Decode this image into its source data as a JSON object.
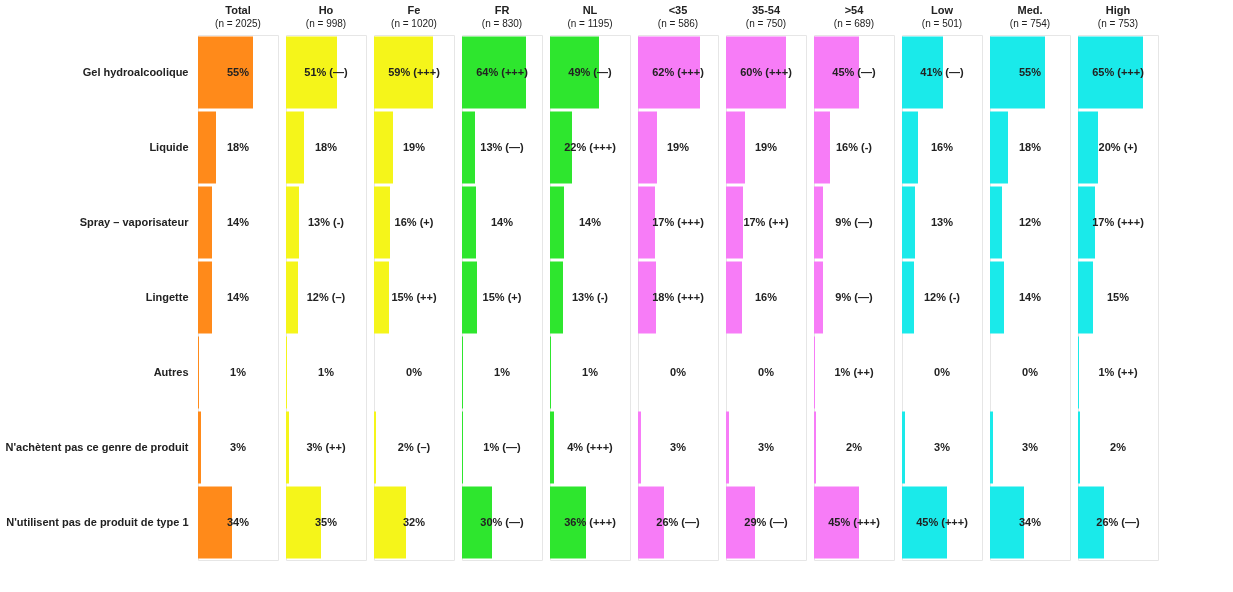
{
  "chart_data": [
    {
      "type": "bar",
      "orientation": "horizontal",
      "title": "Total",
      "subtitle": "(n = 2025)",
      "categories": [
        "Gel hydroalcoolique",
        "Liquide",
        "Spray – vaporisateur",
        "Lingette",
        "Autres",
        "N'achètent pas ce genre de produit",
        "N'utilisent pas de produit de type 1"
      ],
      "xlim": [
        0,
        80
      ],
      "tick_labels": "y",
      "grid": false,
      "legend": false,
      "series": [
        {
          "color": "#ff8a1a",
          "values": [
            55,
            18,
            14,
            14,
            1,
            3,
            34
          ],
          "value_labels": [
            "55%",
            "18%",
            "14%",
            "14%",
            "1%",
            "3%",
            "34%"
          ]
        }
      ]
    },
    {
      "type": "bar",
      "orientation": "horizontal",
      "title": "Ho",
      "subtitle": "(n = 998)",
      "xlim": [
        0,
        80
      ],
      "tick_labels": false,
      "grid": false,
      "legend": false,
      "series": [
        {
          "color": "#f5f51a",
          "values": [
            51,
            18,
            13,
            12,
            1,
            3,
            35
          ],
          "value_labels": [
            "51% (—)",
            "18%",
            "13% (-)",
            "12% (–)",
            "1%",
            "3% (++)",
            "35%"
          ]
        }
      ]
    },
    {
      "type": "bar",
      "orientation": "horizontal",
      "title": "Fe",
      "subtitle": "(n = 1020)",
      "xlim": [
        0,
        80
      ],
      "tick_labels": false,
      "grid": false,
      "legend": false,
      "series": [
        {
          "color": "#f5f51a",
          "values": [
            59,
            19,
            16,
            15,
            0,
            2,
            32
          ],
          "value_labels": [
            "59% (+++)",
            "19%",
            "16% (+)",
            "15% (++)",
            "0%",
            "2% (–)",
            "32%"
          ]
        }
      ]
    },
    {
      "type": "bar",
      "orientation": "horizontal",
      "title": "FR",
      "subtitle": "(n = 830)",
      "xlim": [
        0,
        80
      ],
      "tick_labels": false,
      "grid": false,
      "legend": false,
      "series": [
        {
          "color": "#2ee62e",
          "values": [
            64,
            13,
            14,
            15,
            1,
            1,
            30
          ],
          "value_labels": [
            "64% (+++)",
            "13% (—)",
            "14%",
            "15% (+)",
            "1%",
            "1% (—)",
            "30% (—)"
          ]
        }
      ]
    },
    {
      "type": "bar",
      "orientation": "horizontal",
      "title": "NL",
      "subtitle": "(n = 1195)",
      "xlim": [
        0,
        80
      ],
      "tick_labels": false,
      "grid": false,
      "legend": false,
      "series": [
        {
          "color": "#2ee62e",
          "values": [
            49,
            22,
            14,
            13,
            1,
            4,
            36
          ],
          "value_labels": [
            "49% (—)",
            "22% (+++)",
            "14%",
            "13% (-)",
            "1%",
            "4% (+++)",
            "36% (+++)"
          ]
        }
      ]
    },
    {
      "type": "bar",
      "orientation": "horizontal",
      "title": "<35",
      "subtitle": "(n = 586)",
      "xlim": [
        0,
        80
      ],
      "tick_labels": false,
      "grid": false,
      "legend": false,
      "series": [
        {
          "color": "#f77cf7",
          "values": [
            62,
            19,
            17,
            18,
            0,
            3,
            26
          ],
          "value_labels": [
            "62% (+++)",
            "19%",
            "17% (+++)",
            "18% (+++)",
            "0%",
            "3%",
            "26% (—)"
          ]
        }
      ]
    },
    {
      "type": "bar",
      "orientation": "horizontal",
      "title": "35-54",
      "subtitle": "(n = 750)",
      "xlim": [
        0,
        80
      ],
      "tick_labels": false,
      "grid": false,
      "legend": false,
      "series": [
        {
          "color": "#f77cf7",
          "values": [
            60,
            19,
            17,
            16,
            0,
            3,
            29
          ],
          "value_labels": [
            "60% (+++)",
            "19%",
            "17% (++)",
            "16%",
            "0%",
            "3%",
            "29% (—)"
          ]
        }
      ]
    },
    {
      "type": "bar",
      "orientation": "horizontal",
      "title": ">54",
      "subtitle": "(n = 689)",
      "xlim": [
        0,
        80
      ],
      "tick_labels": false,
      "grid": false,
      "legend": false,
      "series": [
        {
          "color": "#f77cf7",
          "values": [
            45,
            16,
            9,
            9,
            1,
            2,
            45
          ],
          "value_labels": [
            "45% (—)",
            "16% (-)",
            "9% (—)",
            "9% (—)",
            "1% (++)",
            "2%",
            "45% (+++)"
          ]
        }
      ]
    },
    {
      "type": "bar",
      "orientation": "horizontal",
      "title": "Low",
      "subtitle": "(n = 501)",
      "xlim": [
        0,
        80
      ],
      "tick_labels": false,
      "grid": false,
      "legend": false,
      "series": [
        {
          "color": "#1aeaea",
          "values": [
            41,
            16,
            13,
            12,
            0,
            3,
            45
          ],
          "value_labels": [
            "41% (—)",
            "16%",
            "13%",
            "12% (-)",
            "0%",
            "3%",
            "45% (+++)"
          ]
        }
      ]
    },
    {
      "type": "bar",
      "orientation": "horizontal",
      "title": "Med.",
      "subtitle": "(n = 754)",
      "xlim": [
        0,
        80
      ],
      "tick_labels": false,
      "grid": false,
      "legend": false,
      "series": [
        {
          "color": "#1aeaea",
          "values": [
            55,
            18,
            12,
            14,
            0,
            3,
            34
          ],
          "value_labels": [
            "55%",
            "18%",
            "12%",
            "14%",
            "0%",
            "3%",
            "34%"
          ]
        }
      ]
    },
    {
      "type": "bar",
      "orientation": "horizontal",
      "title": "High",
      "subtitle": "(n = 753)",
      "xlim": [
        0,
        80
      ],
      "tick_labels": false,
      "grid": false,
      "legend": false,
      "series": [
        {
          "color": "#1aeaea",
          "values": [
            65,
            20,
            17,
            15,
            1,
            2,
            26
          ],
          "value_labels": [
            "65% (+++)",
            "20% (+)",
            "17% (+++)",
            "15%",
            "1% (++)",
            "2%",
            "26% (—)"
          ]
        }
      ]
    }
  ]
}
